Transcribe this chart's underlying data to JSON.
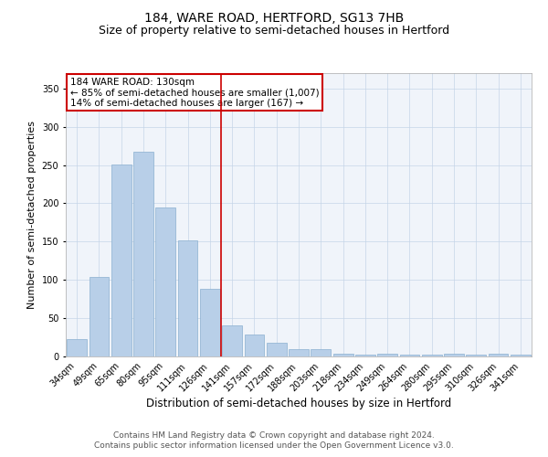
{
  "title": "184, WARE ROAD, HERTFORD, SG13 7HB",
  "subtitle": "Size of property relative to semi-detached houses in Hertford",
  "xlabel": "Distribution of semi-detached houses by size in Hertford",
  "ylabel": "Number of semi-detached properties",
  "categories": [
    "34sqm",
    "49sqm",
    "65sqm",
    "80sqm",
    "95sqm",
    "111sqm",
    "126sqm",
    "141sqm",
    "157sqm",
    "172sqm",
    "188sqm",
    "203sqm",
    "218sqm",
    "234sqm",
    "249sqm",
    "264sqm",
    "280sqm",
    "295sqm",
    "310sqm",
    "326sqm",
    "341sqm"
  ],
  "values": [
    23,
    104,
    251,
    267,
    194,
    151,
    88,
    41,
    29,
    18,
    10,
    10,
    3,
    2,
    3,
    2,
    2,
    3,
    2,
    3,
    2
  ],
  "bar_color": "#b8cfe8",
  "bar_edge_color": "#8ab0d0",
  "red_line_x": 6.5,
  "annotation_line1": "184 WARE ROAD: 130sqm",
  "annotation_line2": "← 85% of semi-detached houses are smaller (1,007)",
  "annotation_line3": "14% of semi-detached houses are larger (167) →",
  "annotation_box_color": "#ffffff",
  "annotation_box_edge": "#cc0000",
  "red_line_color": "#cc0000",
  "ylim": [
    0,
    370
  ],
  "yticks": [
    0,
    50,
    100,
    150,
    200,
    250,
    300,
    350
  ],
  "footer_line1": "Contains HM Land Registry data © Crown copyright and database right 2024.",
  "footer_line2": "Contains public sector information licensed under the Open Government Licence v3.0.",
  "title_fontsize": 10,
  "subtitle_fontsize": 9,
  "xlabel_fontsize": 8.5,
  "ylabel_fontsize": 8,
  "tick_fontsize": 7,
  "annotation_fontsize": 7.5,
  "footer_fontsize": 6.5,
  "bg_color": "#f0f4fa"
}
